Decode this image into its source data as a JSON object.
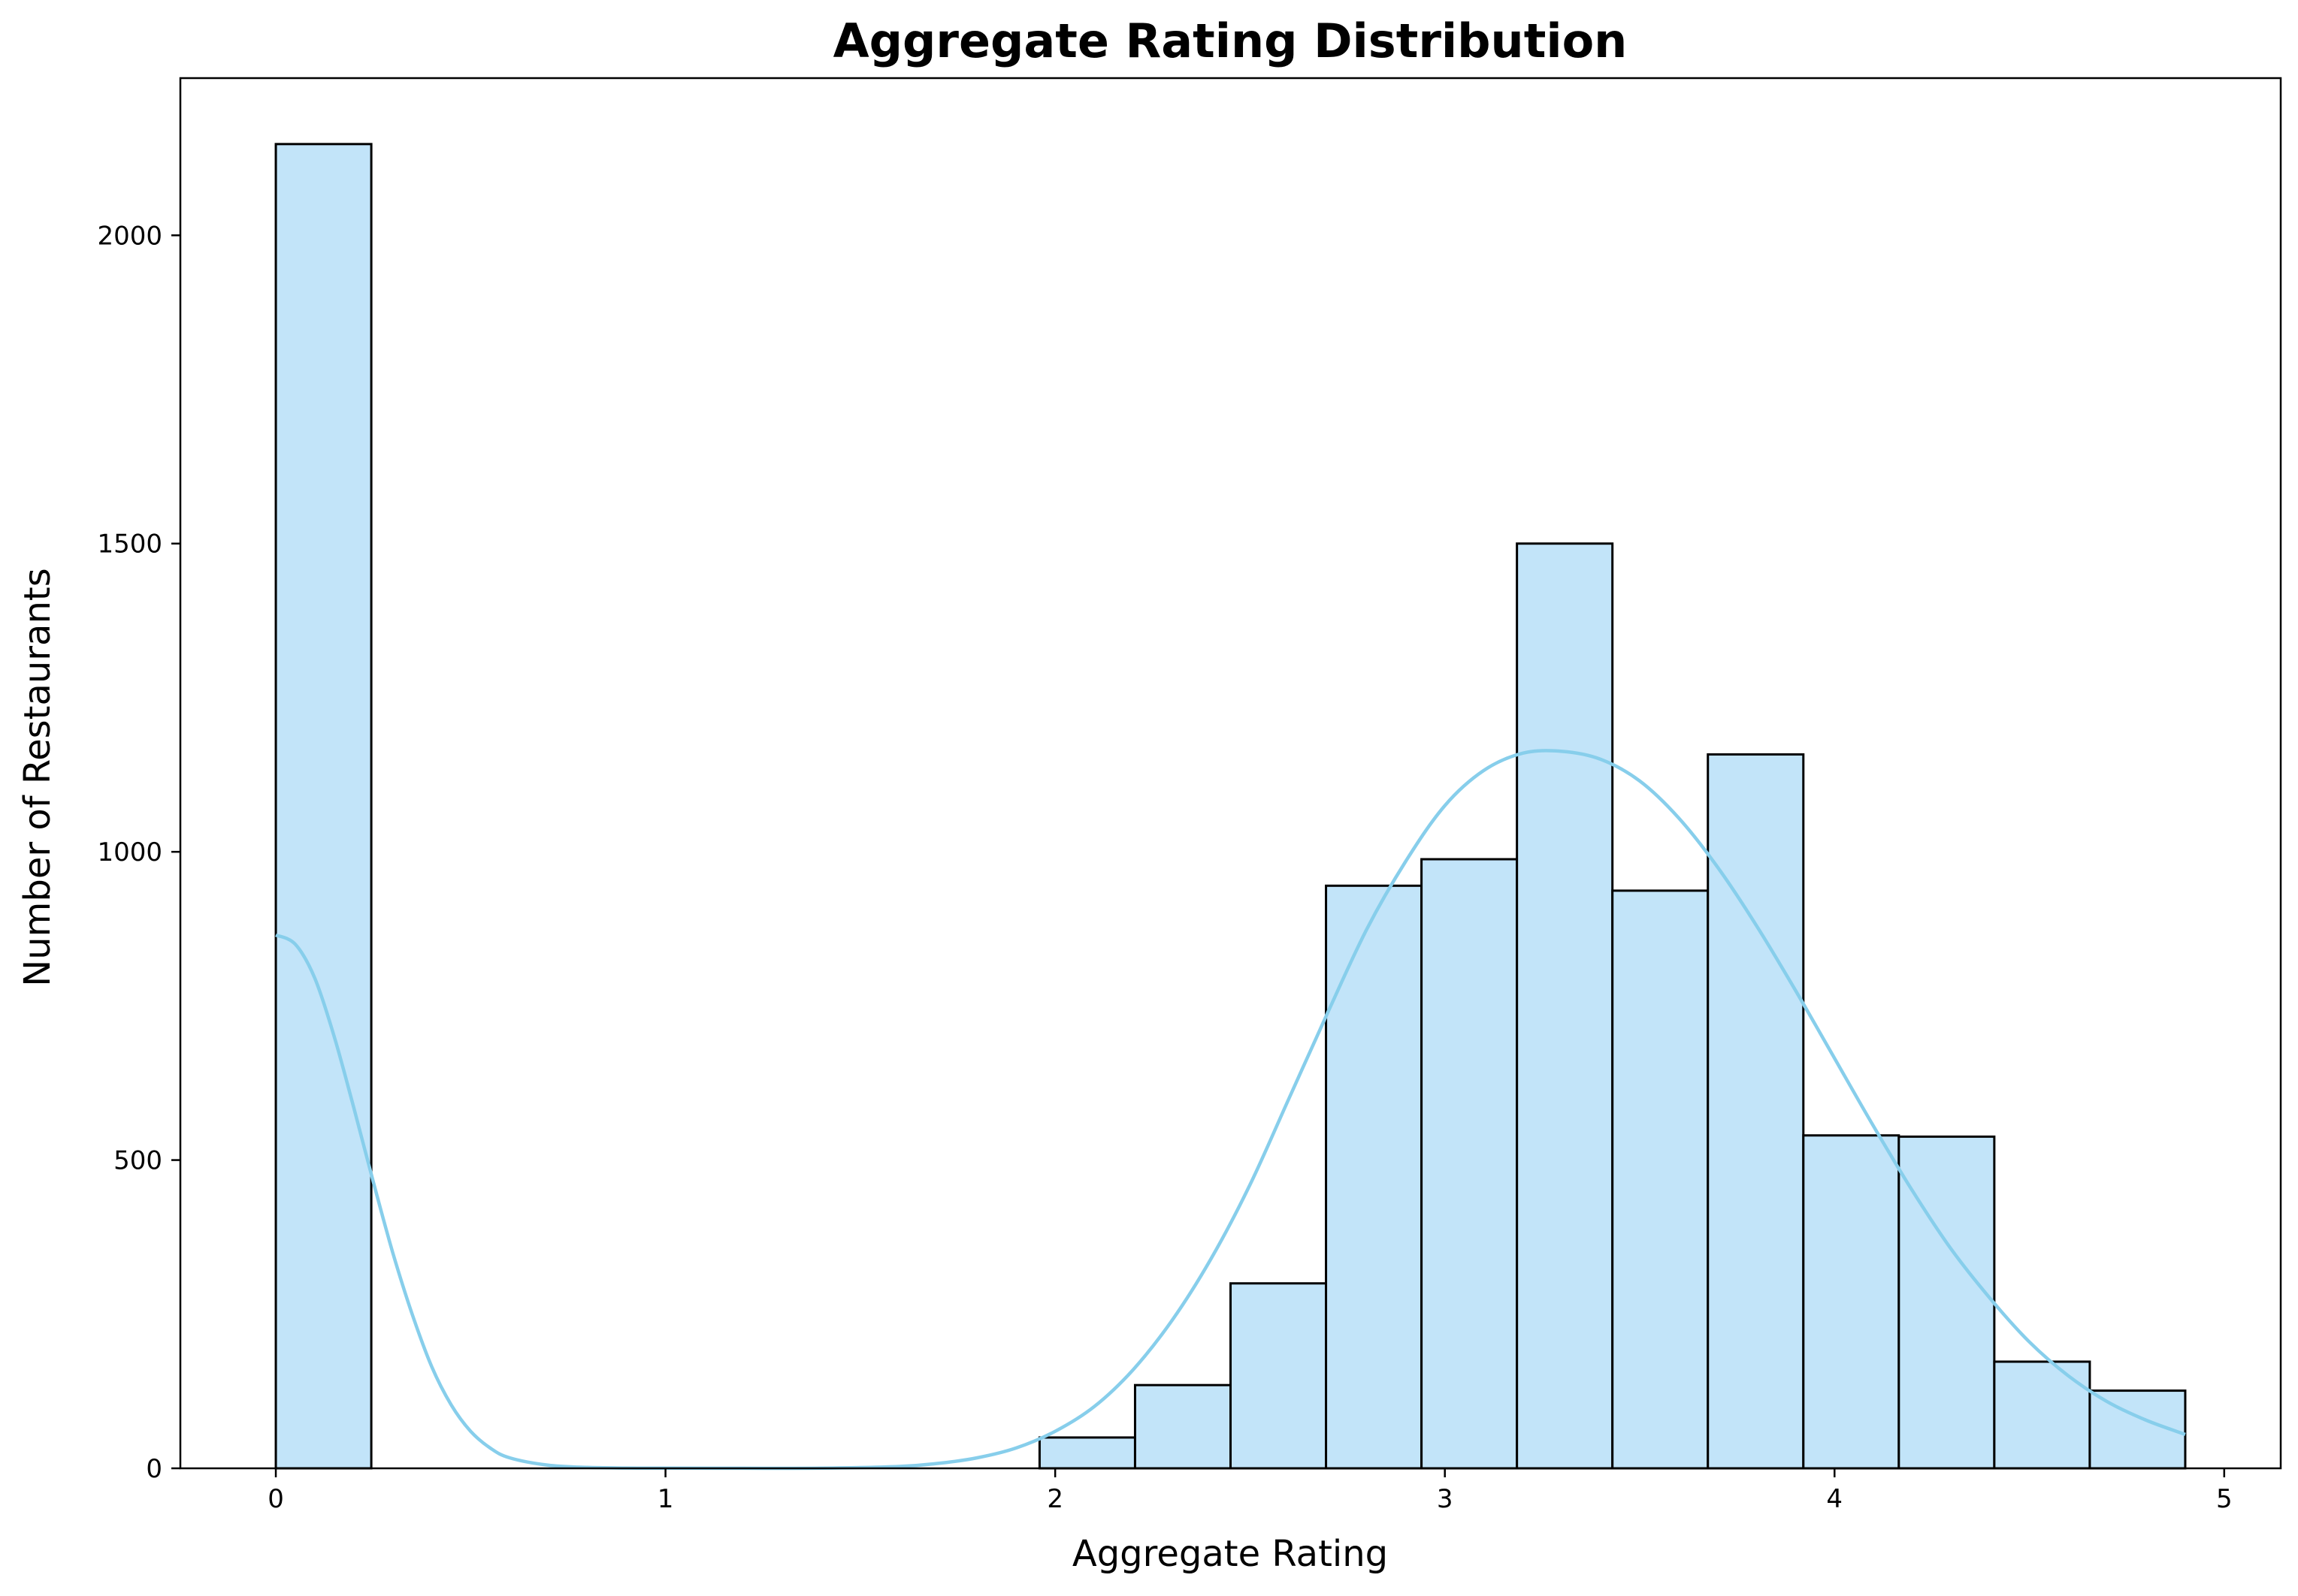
{
  "chart_data": {
    "type": "bar",
    "subtype": "histogram",
    "title": "Aggregate Rating Distribution",
    "xlabel": "Aggregate Rating",
    "ylabel": "Number of Restaurants",
    "xlim": [
      -0.245,
      5.145
    ],
    "ylim": [
      0,
      2255
    ],
    "x_ticks": [
      0,
      1,
      2,
      3,
      4,
      5
    ],
    "y_ticks": [
      0,
      500,
      1000,
      1500,
      2000
    ],
    "grid": false,
    "legend": null,
    "bins": {
      "edges": [
        0,
        0.245,
        0.49,
        0.735,
        0.98,
        1.225,
        1.47,
        1.715,
        1.96,
        2.205,
        2.45,
        2.695,
        2.94,
        3.185,
        3.43,
        3.675,
        3.92,
        4.165,
        4.41,
        4.655,
        4.9
      ],
      "counts": [
        2148,
        0,
        0,
        0,
        0,
        0,
        0,
        0,
        50,
        135,
        300,
        945,
        988,
        1500,
        937,
        1158,
        540,
        538,
        173,
        126
      ]
    },
    "kde": {
      "x": [
        0.0,
        0.05,
        0.1,
        0.15,
        0.2,
        0.25,
        0.3,
        0.35,
        0.4,
        0.45,
        0.5,
        0.55,
        0.6,
        0.7,
        0.8,
        0.9,
        1.0,
        1.2,
        1.4,
        1.6,
        1.7,
        1.8,
        1.9,
        2.0,
        2.1,
        2.2,
        2.3,
        2.4,
        2.5,
        2.6,
        2.7,
        2.8,
        2.9,
        3.0,
        3.1,
        3.2,
        3.3,
        3.4,
        3.5,
        3.6,
        3.7,
        3.8,
        3.9,
        4.0,
        4.1,
        4.2,
        4.3,
        4.4,
        4.5,
        4.6,
        4.7,
        4.8,
        4.9
      ],
      "y": [
        865,
        850,
        795,
        700,
        585,
        465,
        350,
        250,
        165,
        103,
        60,
        33,
        17,
        5,
        1.5,
        0.5,
        0.2,
        0.1,
        0.3,
        3,
        8,
        17,
        33,
        60,
        100,
        160,
        240,
        340,
        460,
        600,
        740,
        875,
        985,
        1075,
        1132,
        1160,
        1163,
        1150,
        1115,
        1055,
        975,
        880,
        775,
        665,
        555,
        450,
        355,
        275,
        205,
        150,
        108,
        78,
        55
      ]
    },
    "colors": {
      "bar_fill": "#c2e4f9",
      "bar_edge": "#000000",
      "kde_line": "#87ceeb",
      "axes": "#000000"
    }
  }
}
